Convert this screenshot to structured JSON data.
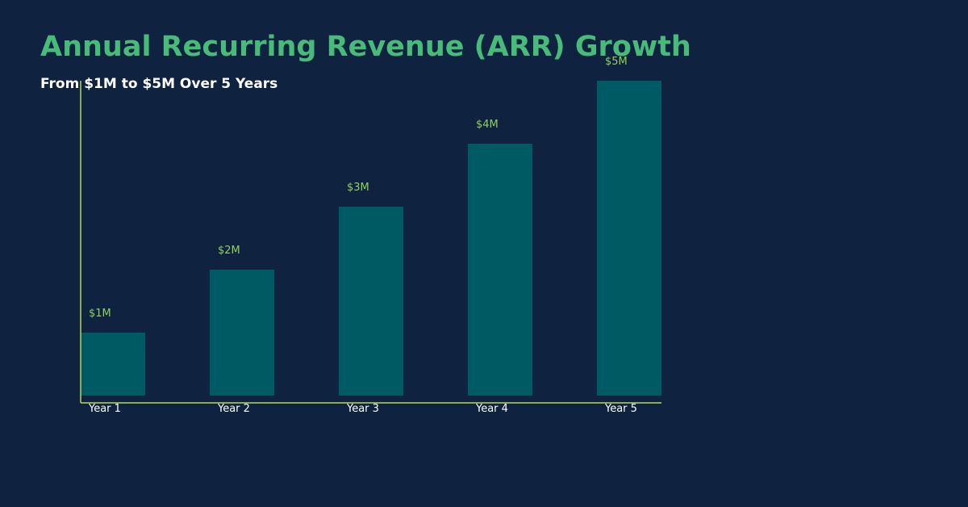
{
  "chart_data": {
    "type": "bar",
    "title": "Annual Recurring Revenue (ARR) Growth",
    "subtitle": "From $1M to $5M Over 5 Years",
    "xlabel": "",
    "ylabel": "",
    "categories": [
      "Year 1",
      "Year 2",
      "Year 3",
      "Year 4",
      "Year 5"
    ],
    "values": [
      1,
      2,
      3,
      4,
      5
    ],
    "unit": "$M",
    "data_labels": [
      "$1M",
      "$2M",
      "$3M",
      "$4M",
      "$5M"
    ],
    "ylim": [
      0,
      5
    ],
    "grid": false,
    "legend": "none"
  },
  "colors": {
    "background": "#0f2240",
    "title": "#48bb78",
    "subtitle": "#ffffff",
    "bar": "#005a64",
    "axis": "#b5d65a",
    "data_label": "#8ed15a",
    "tick_label": "#ffffff"
  }
}
